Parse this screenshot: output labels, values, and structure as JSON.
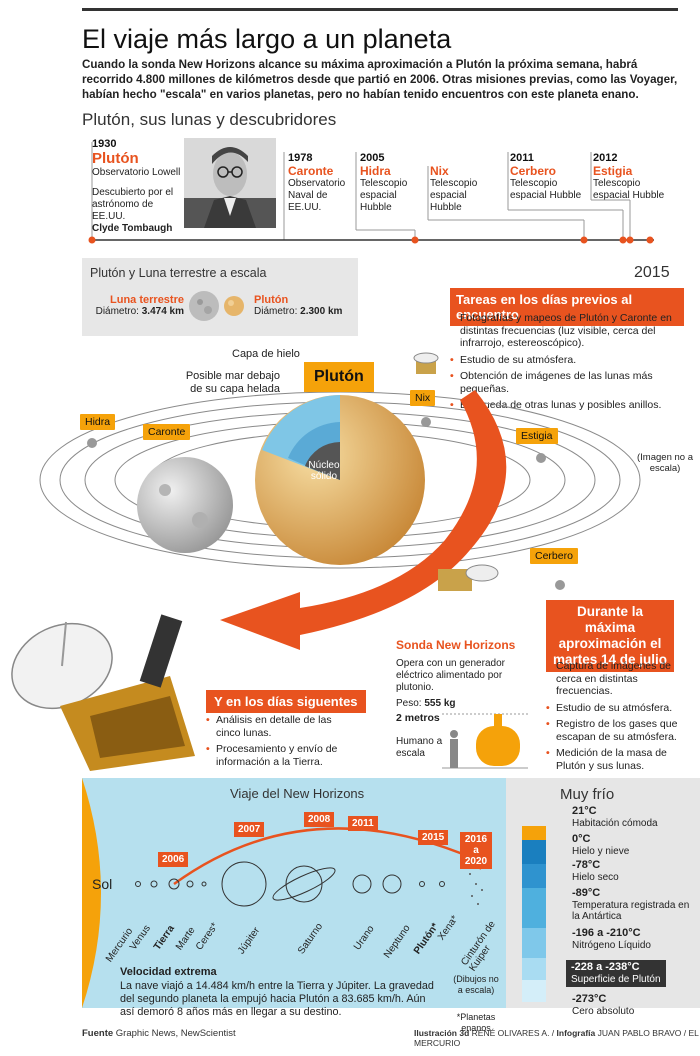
{
  "header": {
    "title": "El viaje más largo a un planeta",
    "lead": "Cuando la sonda New Horizons alcance su máxima aproximación a Plutón la próxima semana, habrá recorrido 4.800 millones de kilómetros desde que partió en 2006. Otras misiones previas, como las Voyager, habían hecho \"escala\" en varios planetas, pero no habían tenido encuentros con este planeta enano.",
    "subtitle": "Plutón, sus lunas y descubridores"
  },
  "timeline": {
    "pluto": {
      "year": "1930",
      "name": "Plutón",
      "place": "Observatorio Lowell",
      "desc": "Descubierto por el astrónomo de EE.UU.",
      "person": "Clyde Tombaugh"
    },
    "charon": {
      "year": "1978",
      "name": "Caronte",
      "place": "Observatorio Naval de EE.UU."
    },
    "hydra": {
      "year": "2005",
      "name": "Hidra",
      "place": "Telescopio espacial Hubble"
    },
    "nix": {
      "name": "Nix",
      "place": "Telescopio espacial Hubble"
    },
    "kerberos": {
      "year": "2011",
      "name": "Cerbero",
      "place": "Telescopio espacial Hubble"
    },
    "styx": {
      "year": "2012",
      "name": "Estigia",
      "place": "Telescopio espacial Hubble"
    },
    "end_year": "2015"
  },
  "scale": {
    "title": "Plutón y Luna terrestre a escala",
    "moon_name": "Luna terrestre",
    "moon_diameter_label": "Diámetro:",
    "moon_diameter": "3.474 km",
    "pluto_name": "Plutón",
    "pluto_diameter_label": "Diámetro:",
    "pluto_diameter": "2.300 km"
  },
  "before": {
    "title": "Tareas en los días previos al encuentro",
    "items": [
      "Fotografías y mapeos de Plutón y Caronte en distintas frecuencias (luz visible, cerca del infrarrojo, estereoscópico).",
      "Estudio de su atmósfera.",
      "Obtención de imágenes de las lunas más pequeñas.",
      "Búsqueda de otras lunas y posibles anillos."
    ]
  },
  "diagram": {
    "ice_layer": "Capa de hielo",
    "possible_sea": "Posible mar debajo de su capa helada",
    "core": "Núcleo sólido",
    "pluto_label": "Plutón",
    "not_to_scale": "(Imagen no a escala)",
    "moons": [
      "Hidra",
      "Caronte",
      "Nix",
      "Estigia",
      "Cerbero"
    ]
  },
  "during": {
    "title": "Durante la máxima aproximación el martes 14 de julio",
    "items": [
      "Captura de imágenes de cerca en distintas frecuencias.",
      "Estudio de su atmósfera.",
      "Registro de los gases que escapan de su atmósfera.",
      "Medición de la masa de Plutón y sus lunas."
    ]
  },
  "probe": {
    "title": "Sonda New Horizons",
    "desc": "Opera con un generador eléctrico alimentado por plutonio.",
    "weight_label": "Peso:",
    "weight": "555 kg",
    "height": "2 metros",
    "human": "Humano a escala"
  },
  "after": {
    "title": "Y en los días siguentes",
    "items": [
      "Análisis en detalle de las cinco lunas.",
      "Procesamiento y envío de información a la Tierra."
    ]
  },
  "journey": {
    "title": "Viaje del New Horizons",
    "sun": "Sol",
    "planets": [
      "Mercurio",
      "Venus",
      "Tierra",
      "Marte",
      "Ceres*",
      "Júpiter",
      "Saturno",
      "Urano",
      "Neptuno",
      "Plutón*",
      "Xena*",
      "Cinturón de Kuiper"
    ],
    "years": [
      "2006",
      "2007",
      "2008",
      "2011",
      "2015",
      "2016 a 2020"
    ],
    "note": "(Dibujos no a escala)",
    "note2": "*Planetas enanos",
    "speed_title": "Velocidad extrema",
    "speed_text": "La nave viajó a 14.484 km/h entre la Tierra y Júpiter. La gravedad del segundo planeta la empujó hacia Plutón a 83.685 km/h. Aún así demoró 8 años más en llegar a su destino."
  },
  "cold": {
    "title": "Muy frío",
    "levels": [
      {
        "temp": "21°C",
        "desc": "Habitación cómoda"
      },
      {
        "temp": "0°C",
        "desc": "Hielo y nieve"
      },
      {
        "temp": "-78°C",
        "desc": "Hielo seco"
      },
      {
        "temp": "-89°C",
        "desc": "Temperatura registrada en la Antártica"
      },
      {
        "temp": "-196 a -210°C",
        "desc": "Nitrógeno Líquido"
      },
      {
        "temp": "-228 a -238°C",
        "desc": "Superficie de Plutón"
      },
      {
        "temp": "-273°C",
        "desc": "Cero absoluto"
      }
    ]
  },
  "footer": {
    "source_label": "Fuente",
    "source": "Graphic News, NewScientist",
    "credit_label": "Ilustración 3d",
    "credit": "RENÉ OLIVARES A.",
    "infog_label": "Infografía",
    "infog": "JUAN PABLO BRAVO / EL MERCURIO"
  },
  "colors": {
    "accent": "#e8531f",
    "tag": "#f5a20a",
    "blue_panel": "#b6e0ee",
    "gray_panel": "#e6e6e6"
  }
}
